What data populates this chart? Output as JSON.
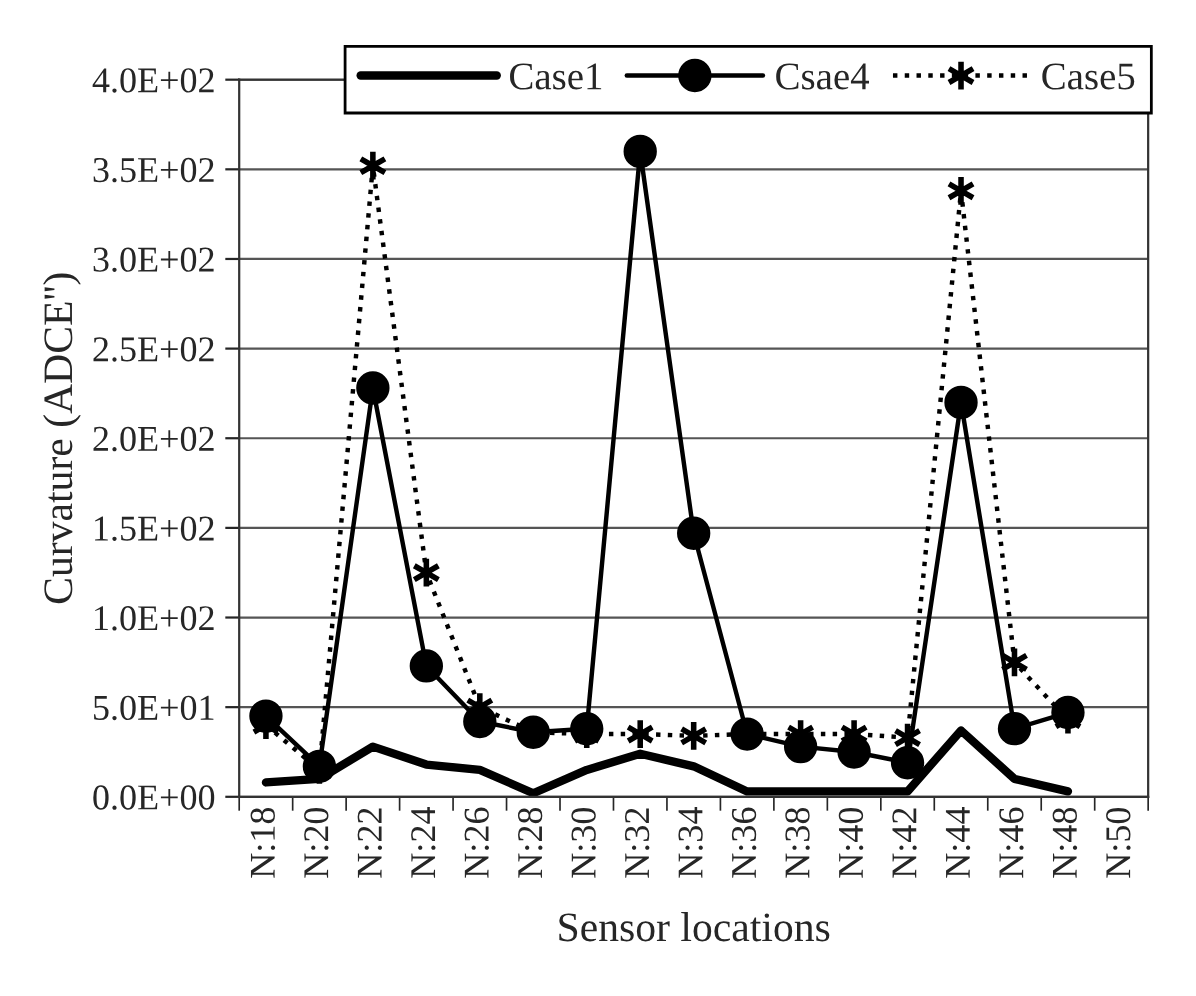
{
  "chart_data": {
    "type": "line",
    "xlabel": "Sensor locations",
    "ylabel": "Curvature (ADCE'')",
    "categories": [
      "N:18",
      "N:20",
      "N:22",
      "N:24",
      "N:26",
      "N:28",
      "N:30",
      "N:32",
      "N:34",
      "N:36",
      "N:38",
      "N:40",
      "N:42",
      "N:44",
      "N:46",
      "N:48",
      "N:50"
    ],
    "series": [
      {
        "name": "Case1",
        "color": "#000000",
        "marker": "none",
        "line_style": "solid",
        "values": [
          8,
          10,
          28,
          18,
          15,
          2,
          15,
          24,
          17,
          3,
          3,
          3,
          3,
          37,
          10,
          3,
          null
        ]
      },
      {
        "name": "Csae4",
        "color": "#000000",
        "marker": "circle",
        "line_style": "solid",
        "values": [
          45,
          17,
          228,
          73,
          42,
          36,
          38,
          360,
          147,
          35,
          28,
          25,
          19,
          220,
          38,
          47,
          null
        ]
      },
      {
        "name": "Case5",
        "color": "#000000",
        "marker": "cross",
        "line_style": "dotted",
        "values": [
          40,
          15,
          352,
          125,
          50,
          36,
          35,
          35,
          34,
          35,
          35,
          35,
          33,
          338,
          75,
          43,
          null
        ]
      }
    ],
    "ylim": [
      0,
      400
    ],
    "yticks": [
      {
        "value": 0,
        "label": "0.0E+00"
      },
      {
        "value": 50,
        "label": "5.0E+01"
      },
      {
        "value": 100,
        "label": "1.0E+02"
      },
      {
        "value": 150,
        "label": "1.5E+02"
      },
      {
        "value": 200,
        "label": "2.0E+02"
      },
      {
        "value": 250,
        "label": "2.5E+02"
      },
      {
        "value": 300,
        "label": "3.0E+02"
      },
      {
        "value": 350,
        "label": "3.5E+02"
      },
      {
        "value": 400,
        "label": "4.0E+02"
      }
    ],
    "grid": "y",
    "legend": "top"
  }
}
